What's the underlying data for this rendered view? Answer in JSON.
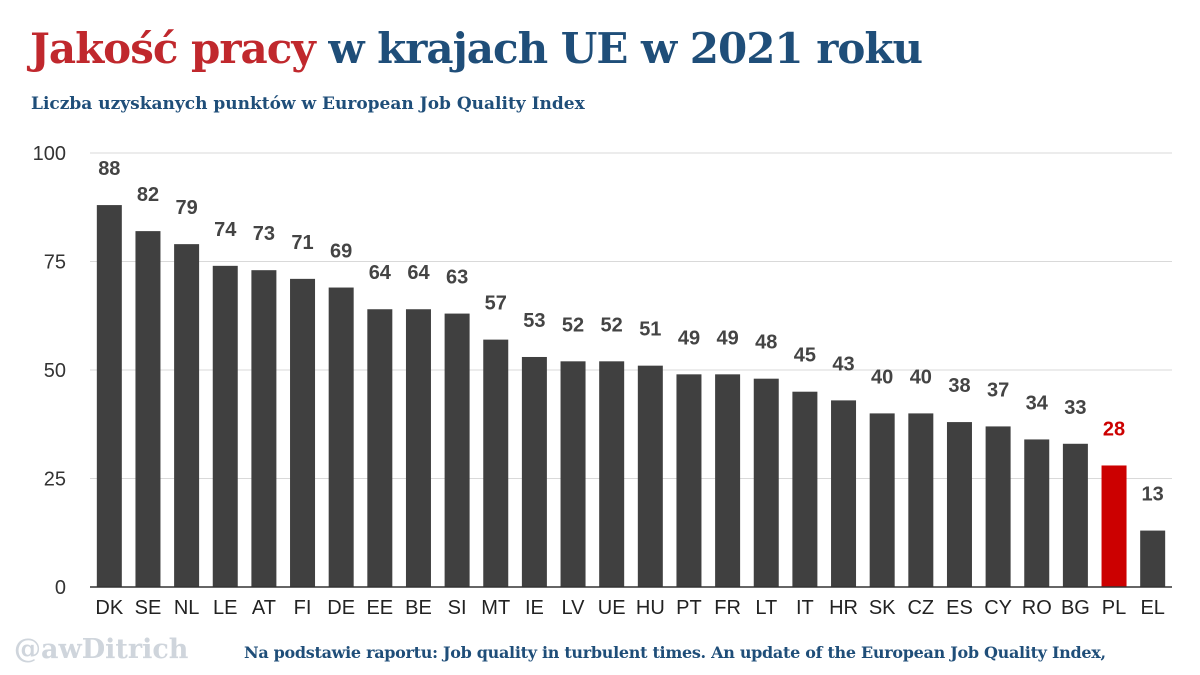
{
  "header": {
    "title_part1": "Jakość pracy",
    "title_part2": "w krajach UE w 2021 roku",
    "subtitle": "Liczba uzyskanych punktów w European Job Quality Index"
  },
  "footer": {
    "watermark": "@awDitrich",
    "source": "Na podstawie raportu: Job quality in turbulent times. An update of the European Job Quality Index,"
  },
  "colors": {
    "title_red": "#c0282d",
    "title_blue": "#1f4e79",
    "bar": "#404040",
    "highlight": "#cc0000",
    "grid": "#d9d9d9"
  },
  "chart_data": {
    "type": "bar",
    "title": "Jakość pracy w krajach UE w 2021 roku",
    "subtitle": "Liczba uzyskanych punktów w European Job Quality Index",
    "xlabel": "",
    "ylabel": "",
    "ylim": [
      0,
      100
    ],
    "yticks": [
      0,
      25,
      50,
      75,
      100
    ],
    "grid": true,
    "highlight_category": "PL",
    "categories": [
      "DK",
      "SE",
      "NL",
      "LE",
      "AT",
      "FI",
      "DE",
      "EE",
      "BE",
      "SI",
      "MT",
      "IE",
      "LV",
      "UE",
      "HU",
      "PT",
      "FR",
      "LT",
      "IT",
      "HR",
      "SK",
      "CZ",
      "ES",
      "CY",
      "RO",
      "BG",
      "PL",
      "EL"
    ],
    "values": [
      88,
      82,
      79,
      74,
      73,
      71,
      69,
      64,
      64,
      63,
      57,
      53,
      52,
      52,
      51,
      49,
      49,
      48,
      45,
      43,
      40,
      40,
      38,
      37,
      34,
      33,
      28,
      13
    ]
  }
}
